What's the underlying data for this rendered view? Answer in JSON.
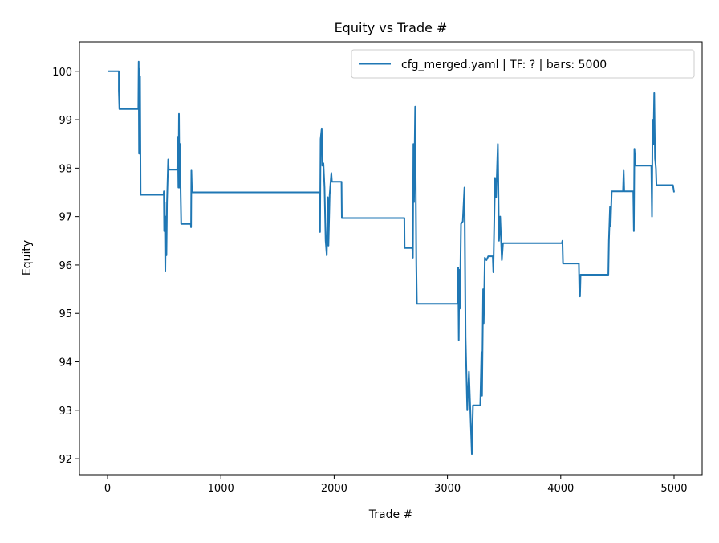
{
  "chart_data": {
    "type": "line",
    "title": "Equity vs Trade #",
    "xlabel": "Trade #",
    "ylabel": "Equity",
    "xlim": [
      -248,
      5248
    ],
    "ylim": [
      91.67,
      100.61
    ],
    "xticks": [
      0,
      1000,
      2000,
      3000,
      4000,
      5000
    ],
    "yticks": [
      92,
      93,
      94,
      95,
      96,
      97,
      98,
      99,
      100
    ],
    "grid": false,
    "legend_position": "top-right",
    "series": [
      {
        "name": "cfg_merged.yaml | TF: ? | bars: 5000",
        "color": "#1f77b4",
        "points": [
          [
            0,
            100
          ],
          [
            100,
            100
          ],
          [
            100,
            99.6
          ],
          [
            105,
            99.22
          ],
          [
            272,
            99.22
          ],
          [
            275,
            100.2
          ],
          [
            278,
            98.3
          ],
          [
            281,
            100.05
          ],
          [
            284,
            98.3
          ],
          [
            287,
            99.9
          ],
          [
            292,
            97.45
          ],
          [
            495,
            97.45
          ],
          [
            497,
            97.52
          ],
          [
            500,
            96.7
          ],
          [
            505,
            97.3
          ],
          [
            510,
            95.88
          ],
          [
            515,
            97.0
          ],
          [
            520,
            96.2
          ],
          [
            525,
            97.3
          ],
          [
            535,
            98.18
          ],
          [
            540,
            97.97
          ],
          [
            615,
            97.97
          ],
          [
            620,
            98.65
          ],
          [
            625,
            97.6
          ],
          [
            630,
            99.12
          ],
          [
            635,
            97.6
          ],
          [
            640,
            98.5
          ],
          [
            645,
            97.5
          ],
          [
            650,
            96.85
          ],
          [
            735,
            96.85
          ],
          [
            737,
            96.78
          ],
          [
            740,
            97.95
          ],
          [
            745,
            97.5
          ],
          [
            1870,
            97.5
          ],
          [
            1875,
            96.68
          ],
          [
            1880,
            98.6
          ],
          [
            1890,
            98.82
          ],
          [
            1895,
            98.05
          ],
          [
            1905,
            98.1
          ],
          [
            1915,
            97.6
          ],
          [
            1925,
            96.5
          ],
          [
            1935,
            96.2
          ],
          [
            1945,
            97.4
          ],
          [
            1950,
            96.4
          ],
          [
            1960,
            97.45
          ],
          [
            1975,
            97.9
          ],
          [
            1980,
            97.72
          ],
          [
            2065,
            97.72
          ],
          [
            2068,
            96.97
          ],
          [
            2620,
            96.97
          ],
          [
            2622,
            96.35
          ],
          [
            2690,
            96.35
          ],
          [
            2695,
            96.15
          ],
          [
            2700,
            98.5
          ],
          [
            2705,
            97.3
          ],
          [
            2715,
            99.27
          ],
          [
            2720,
            97.6
          ],
          [
            2725,
            96.0
          ],
          [
            2730,
            95.2
          ],
          [
            3090,
            95.2
          ],
          [
            3095,
            95.95
          ],
          [
            3100,
            94.45
          ],
          [
            3105,
            95.9
          ],
          [
            3110,
            95.1
          ],
          [
            3120,
            96.85
          ],
          [
            3135,
            96.9
          ],
          [
            3150,
            97.6
          ],
          [
            3160,
            94.5
          ],
          [
            3175,
            93.0
          ],
          [
            3190,
            93.8
          ],
          [
            3215,
            92.1
          ],
          [
            3225,
            93.1
          ],
          [
            3290,
            93.1
          ],
          [
            3300,
            94.2
          ],
          [
            3305,
            93.3
          ],
          [
            3315,
            95.5
          ],
          [
            3320,
            94.8
          ],
          [
            3330,
            96.15
          ],
          [
            3345,
            96.1
          ],
          [
            3360,
            96.18
          ],
          [
            3400,
            96.18
          ],
          [
            3405,
            95.85
          ],
          [
            3420,
            97.8
          ],
          [
            3430,
            97.4
          ],
          [
            3445,
            98.5
          ],
          [
            3455,
            96.5
          ],
          [
            3465,
            97.0
          ],
          [
            3480,
            96.1
          ],
          [
            3490,
            96.45
          ],
          [
            4010,
            96.45
          ],
          [
            4015,
            96.5
          ],
          [
            4020,
            96.03
          ],
          [
            4160,
            96.03
          ],
          [
            4165,
            95.4
          ],
          [
            4170,
            95.35
          ],
          [
            4175,
            95.8
          ],
          [
            4420,
            95.8
          ],
          [
            4425,
            96.5
          ],
          [
            4435,
            97.2
          ],
          [
            4440,
            96.8
          ],
          [
            4450,
            97.52
          ],
          [
            4550,
            97.52
          ],
          [
            4555,
            97.95
          ],
          [
            4560,
            97.52
          ],
          [
            4640,
            97.52
          ],
          [
            4645,
            96.7
          ],
          [
            4650,
            98.4
          ],
          [
            4660,
            98.05
          ],
          [
            4800,
            98.05
          ],
          [
            4805,
            97.0
          ],
          [
            4810,
            99.0
          ],
          [
            4818,
            98.5
          ],
          [
            4825,
            99.55
          ],
          [
            4832,
            98.2
          ],
          [
            4840,
            98.0
          ],
          [
            4845,
            97.65
          ],
          [
            4990,
            97.65
          ],
          [
            5000,
            97.5
          ]
        ]
      }
    ]
  }
}
